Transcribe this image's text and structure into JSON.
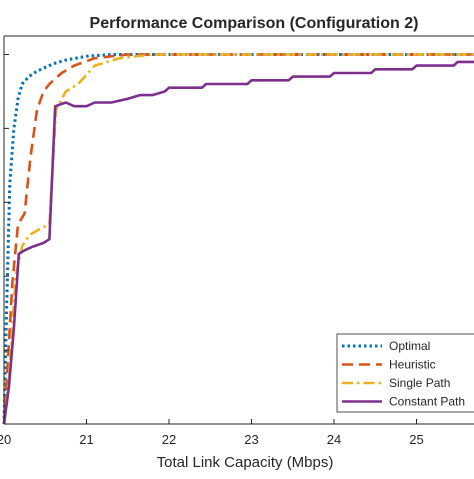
{
  "chart_data": {
    "type": "line",
    "title": "Performance Comparison (Configuration 2)",
    "xlabel": "Total Link Capacity (Mbps)",
    "ylabel": "",
    "xlim": [
      20,
      25.8
    ],
    "ylim": [
      0,
      1.05
    ],
    "x_ticks": [
      "20",
      "21",
      "22",
      "23",
      "24",
      "25"
    ],
    "grid": false,
    "legend_position": "bottom-right",
    "series": [
      {
        "name": "Optimal",
        "color": "#0072BD",
        "dash": "dotted",
        "points": [
          [
            20,
            0.0
          ],
          [
            20.03,
            0.3
          ],
          [
            20.07,
            0.65
          ],
          [
            20.12,
            0.8
          ],
          [
            20.17,
            0.88
          ],
          [
            20.22,
            0.92
          ],
          [
            20.3,
            0.94
          ],
          [
            20.4,
            0.955
          ],
          [
            20.5,
            0.965
          ],
          [
            20.6,
            0.975
          ],
          [
            20.75,
            0.985
          ],
          [
            21.0,
            0.995
          ],
          [
            21.3,
            1.0
          ],
          [
            25.8,
            1.0
          ]
        ]
      },
      {
        "name": "Heuristic",
        "color": "#D95319",
        "dash": "dashed",
        "points": [
          [
            20,
            0.0
          ],
          [
            20.05,
            0.18
          ],
          [
            20.1,
            0.38
          ],
          [
            20.17,
            0.54
          ],
          [
            20.25,
            0.57
          ],
          [
            20.32,
            0.72
          ],
          [
            20.4,
            0.85
          ],
          [
            20.48,
            0.9
          ],
          [
            20.55,
            0.92
          ],
          [
            20.7,
            0.95
          ],
          [
            20.85,
            0.97
          ],
          [
            21.1,
            0.99
          ],
          [
            21.5,
            1.0
          ],
          [
            25.8,
            1.0
          ]
        ]
      },
      {
        "name": "Single Path",
        "color": "#EDB120",
        "dash": "dashdot",
        "points": [
          [
            20,
            0.0
          ],
          [
            20.06,
            0.12
          ],
          [
            20.14,
            0.4
          ],
          [
            20.22,
            0.48
          ],
          [
            20.3,
            0.51
          ],
          [
            20.45,
            0.53
          ],
          [
            20.55,
            0.54
          ],
          [
            20.63,
            0.85
          ],
          [
            20.75,
            0.9
          ],
          [
            20.9,
            0.92
          ],
          [
            21.1,
            0.97
          ],
          [
            21.4,
            0.99
          ],
          [
            21.8,
            1.0
          ],
          [
            25.8,
            1.0
          ]
        ]
      },
      {
        "name": "Constant Path",
        "color": "#7E2F8E",
        "dash": "solid",
        "points": [
          [
            20,
            0.0
          ],
          [
            20.06,
            0.1
          ],
          [
            20.12,
            0.26
          ],
          [
            20.18,
            0.46
          ],
          [
            20.25,
            0.47
          ],
          [
            20.35,
            0.48
          ],
          [
            20.48,
            0.49
          ],
          [
            20.55,
            0.5
          ],
          [
            20.62,
            0.86
          ],
          [
            20.75,
            0.87
          ],
          [
            20.85,
            0.86
          ],
          [
            21.0,
            0.86
          ],
          [
            21.1,
            0.87
          ],
          [
            21.3,
            0.87
          ],
          [
            21.5,
            0.88
          ],
          [
            21.65,
            0.89
          ],
          [
            21.8,
            0.89
          ],
          [
            21.95,
            0.9
          ],
          [
            22.0,
            0.91
          ],
          [
            22.4,
            0.91
          ],
          [
            22.45,
            0.92
          ],
          [
            22.95,
            0.92
          ],
          [
            23.0,
            0.93
          ],
          [
            23.45,
            0.93
          ],
          [
            23.5,
            0.94
          ],
          [
            23.95,
            0.94
          ],
          [
            24.0,
            0.95
          ],
          [
            24.45,
            0.95
          ],
          [
            24.5,
            0.96
          ],
          [
            24.95,
            0.96
          ],
          [
            25.0,
            0.97
          ],
          [
            25.45,
            0.97
          ],
          [
            25.5,
            0.98
          ],
          [
            25.8,
            0.98
          ]
        ]
      }
    ]
  }
}
